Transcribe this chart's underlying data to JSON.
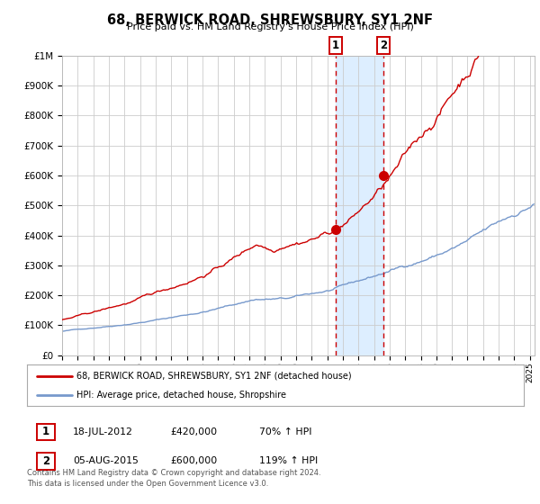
{
  "title": "68, BERWICK ROAD, SHREWSBURY, SY1 2NF",
  "subtitle": "Price paid vs. HM Land Registry's House Price Index (HPI)",
  "legend_line1": "68, BERWICK ROAD, SHREWSBURY, SY1 2NF (detached house)",
  "legend_line2": "HPI: Average price, detached house, Shropshire",
  "red_color": "#cc0000",
  "blue_color": "#7799cc",
  "marker1_date": 2012.54,
  "marker1_value": 420000,
  "marker2_date": 2015.59,
  "marker2_value": 600000,
  "marker1_label": "1",
  "marker2_label": "2",
  "footer": "Contains HM Land Registry data © Crown copyright and database right 2024.\nThis data is licensed under the Open Government Licence v3.0.",
  "ylim": [
    0,
    1000000
  ],
  "xlim_start": 1995.0,
  "xlim_end": 2025.3,
  "background_color": "#ffffff",
  "grid_color": "#cccccc",
  "shading_color": "#ddeeff",
  "ann1_date": "18-JUL-2012",
  "ann1_price": "£420,000",
  "ann1_hpi": "70% ↑ HPI",
  "ann2_date": "05-AUG-2015",
  "ann2_price": "£600,000",
  "ann2_hpi": "119% ↑ HPI"
}
